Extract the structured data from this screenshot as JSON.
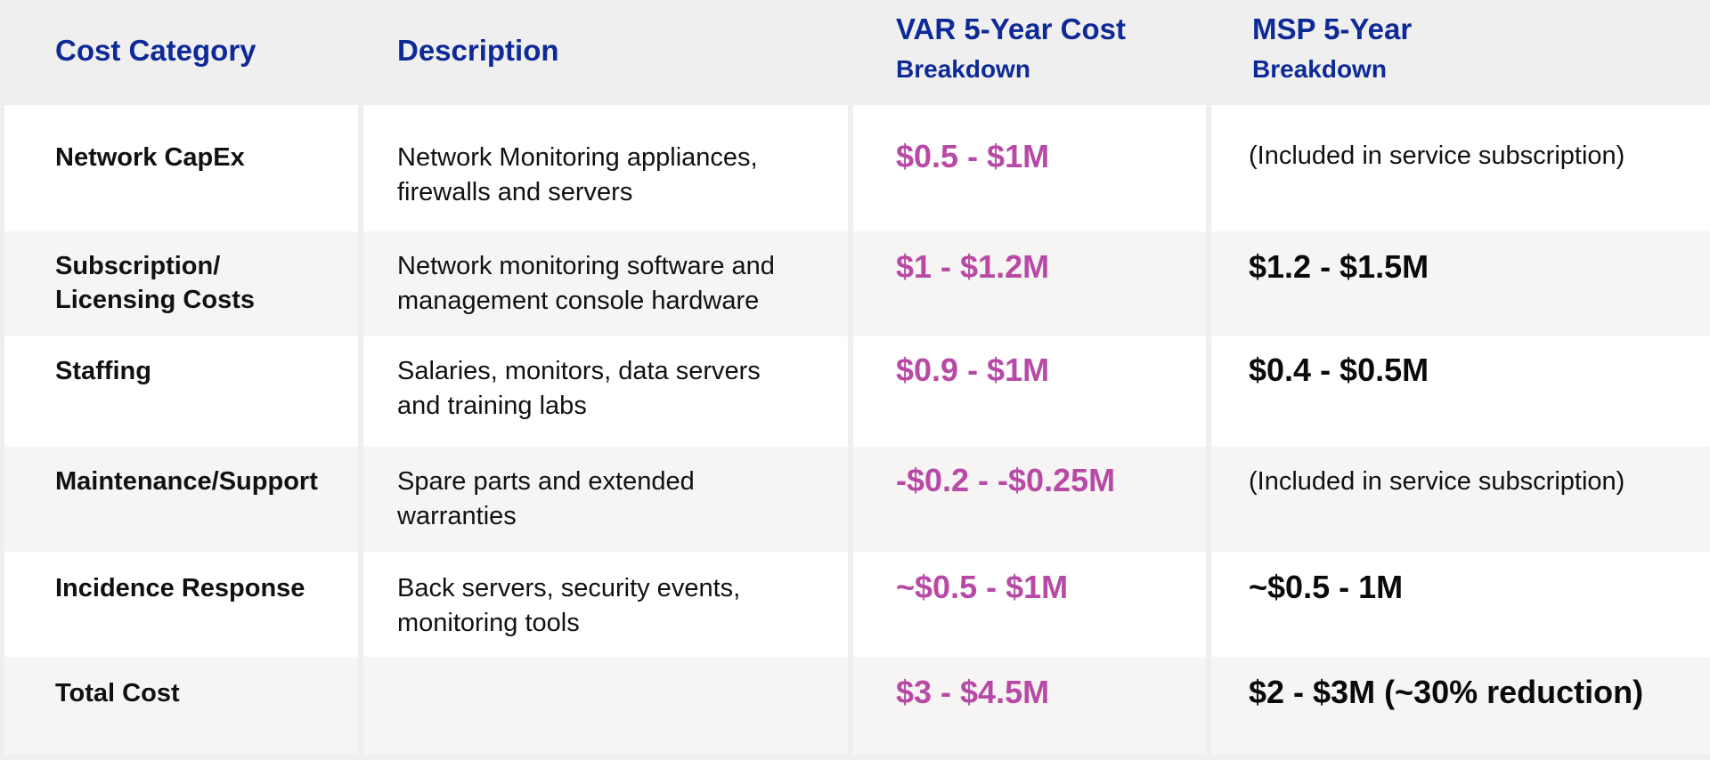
{
  "header": {
    "category": "Cost Category",
    "description": "Description",
    "var_main": "VAR 5-Year Cost",
    "var_sub": "Breakdown",
    "msp_main": "MSP 5-Year",
    "msp_sub": "Breakdown"
  },
  "rows": [
    {
      "category_l1": "Network CapEx",
      "category_l2": "",
      "desc_l1": "Network Monitoring appliances,",
      "desc_l2": "firewalls and servers",
      "var": "$0.5 - $1M",
      "msp": "(Included in service subscription)",
      "msp_style": "plain"
    },
    {
      "category_l1": "Subscription/",
      "category_l2": "Licensing Costs",
      "desc_l1": "Network monitoring software and",
      "desc_l2": "management console hardware",
      "var": "$1 - $1.2M",
      "msp": "$1.2 - $1.5M",
      "msp_style": "bold"
    },
    {
      "category_l1": "Staffing",
      "category_l2": "",
      "desc_l1": "Salaries, monitors, data servers",
      "desc_l2": "and training labs",
      "var": "$0.9 - $1M",
      "msp": "$0.4 - $0.5M",
      "msp_style": "bold"
    },
    {
      "category_l1": "Maintenance/Support",
      "category_l2": "",
      "desc_l1": "Spare parts and extended",
      "desc_l2": "warranties",
      "var": "-$0.2 - -$0.25M",
      "msp": "(Included in service subscription)",
      "msp_style": "plain"
    },
    {
      "category_l1": "Incidence Response",
      "category_l2": "",
      "desc_l1": "Back servers, security events,",
      "desc_l2": "monitoring tools",
      "var": "~$0.5 - $1M",
      "msp": "~$0.5 - 1M",
      "msp_style": "bold"
    },
    {
      "category_l1": "Total Cost",
      "category_l2": "",
      "desc_l1": "",
      "desc_l2": "",
      "var": "$3 - $4.5M",
      "msp": "$2 - $3M (~30% reduction)",
      "msp_style": "bold"
    }
  ],
  "colors": {
    "header_text": "#0d2a96",
    "var_values": "#b84aa6",
    "header_bg": "#f0efef",
    "alt_row_bg": "#f6f5f4"
  }
}
